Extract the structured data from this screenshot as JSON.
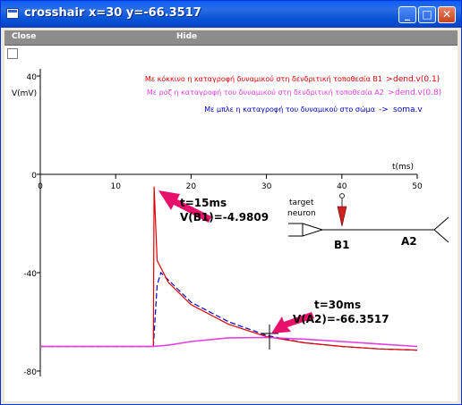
{
  "window": {
    "title": "crosshair x=30 y=-66.3517"
  },
  "menu": {
    "close_label": "Close",
    "hide_label": "Hide"
  },
  "plot": {
    "y_axis_label": "V(mV)",
    "x_axis_label": "t(ms)",
    "y_ticks": [
      "40",
      "0",
      "-40",
      "-80"
    ],
    "x_ticks": [
      "0",
      "10",
      "20",
      "30",
      "40",
      "50"
    ],
    "legend": [
      {
        "text": "Με κόκκινο η καταγροφή δυναμικού στη δενδριτική τοποθεσία B1",
        "var": "dend.v(0.1)",
        "color": "#e00000"
      },
      {
        "text": "Με ροζ η καταγροφή του δυναμικού στη δενδριτική τοποθεσία A2",
        "var": "dend.v(0.8)",
        "color": "#e040e0"
      },
      {
        "text": "Με μπλε η καταγροφή του δυναμικού στο σώμα",
        "var": "soma.v",
        "color": "#0000c0"
      }
    ],
    "annotation1": {
      "line1": "t=15ms",
      "line2": "V(B1)=-4.9809"
    },
    "annotation2": {
      "line1": "t=30ms",
      "line2": "V(A2)=-66.3517"
    },
    "diagram": {
      "target_label": "target",
      "neuron_label": "neuron",
      "b1_label": "B1",
      "a2_label": "A2"
    },
    "arrow_color": "#e8106a"
  },
  "chart_data": {
    "type": "line",
    "xlabel": "t(ms)",
    "ylabel": "V(mV)",
    "xlim": [
      0,
      50
    ],
    "ylim": [
      -80,
      40
    ],
    "series": [
      {
        "name": "dend.v(0.1)",
        "color": "#e00000",
        "x": [
          0,
          15,
          15.1,
          15.5,
          17,
          20,
          25,
          30,
          35,
          40,
          45,
          50
        ],
        "y": [
          -70,
          -70,
          -5,
          -35,
          -44,
          -53,
          -61,
          -66,
          -68.5,
          -70,
          -71,
          -71.5
        ]
      },
      {
        "name": "dend.v(0.8)",
        "color": "#e040e0",
        "x": [
          0,
          15,
          17,
          20,
          25,
          30,
          35,
          40,
          45,
          50
        ],
        "y": [
          -70,
          -70,
          -69.5,
          -68,
          -66.5,
          -66.35,
          -67,
          -68,
          -69,
          -70
        ]
      },
      {
        "name": "soma.v",
        "color": "#0000c0",
        "x": [
          0,
          15,
          15.5,
          16,
          17,
          20,
          25,
          30,
          35,
          40,
          45,
          50
        ],
        "y": [
          -70,
          -70,
          -45,
          -40,
          -43,
          -52,
          -60,
          -65.5,
          -68.5,
          -70,
          -71,
          -71.5
        ]
      }
    ]
  }
}
